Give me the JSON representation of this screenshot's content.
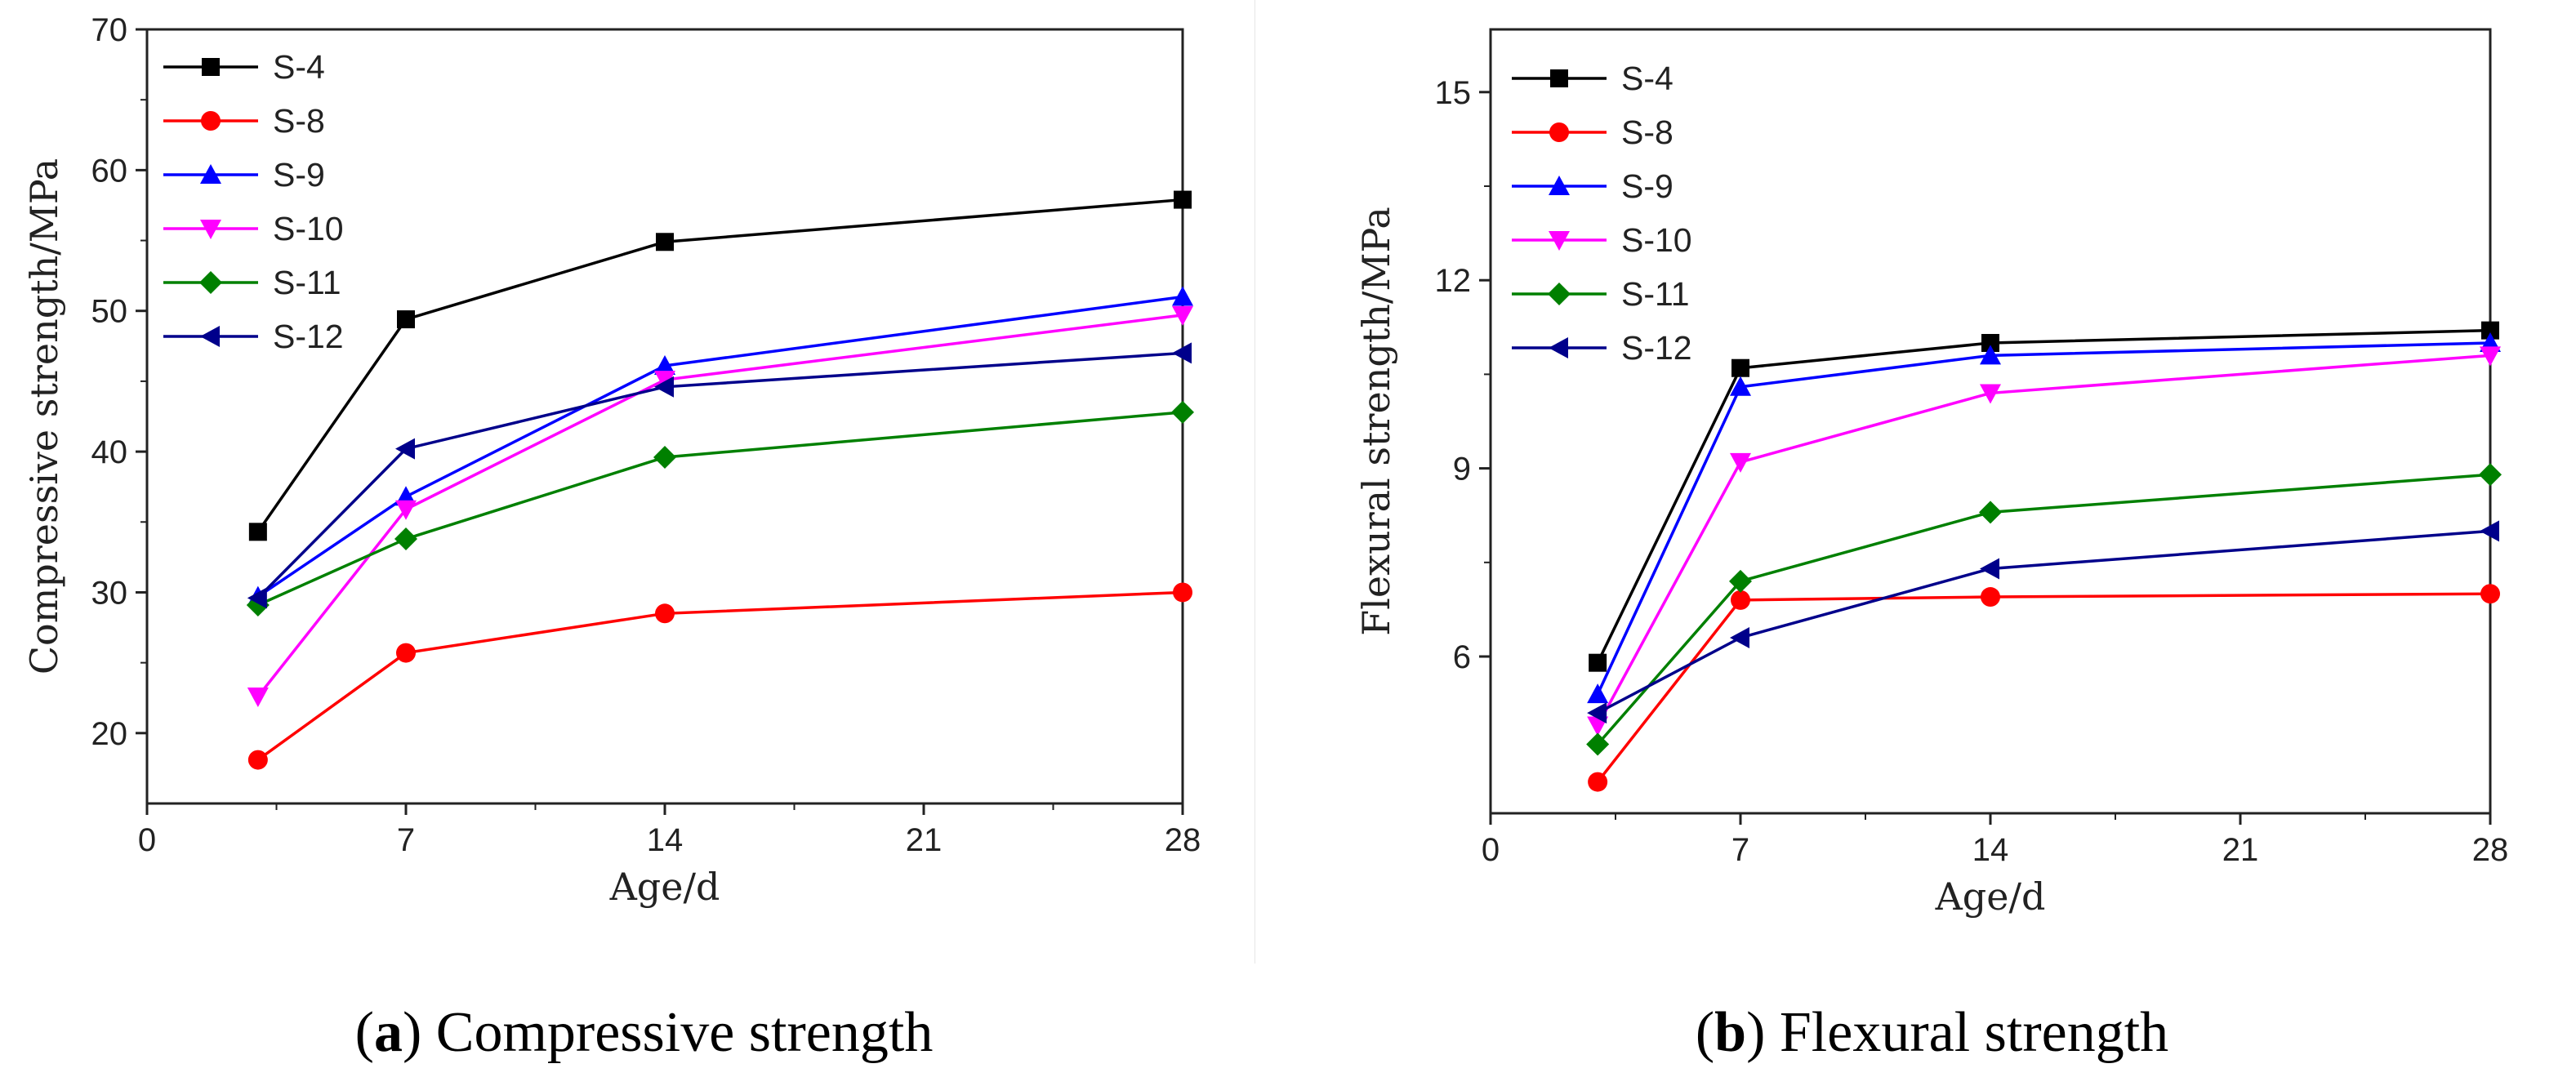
{
  "chart_data": [
    {
      "type": "line",
      "id": "a",
      "title": "Compressive strength",
      "caption_letter": "a",
      "xlabel": "Age/d",
      "ylabel": "Compressive strength/MPa",
      "xlim": [
        0,
        28
      ],
      "ylim": [
        15,
        70
      ],
      "xticks": [
        0,
        7,
        14,
        21,
        28
      ],
      "yticks": [
        20,
        30,
        40,
        50,
        60,
        70
      ],
      "legend_position": "top-left",
      "x": [
        3,
        7,
        14,
        28
      ],
      "series": [
        {
          "name": "S-4",
          "color": "#000000",
          "marker": "square",
          "values": [
            34.3,
            49.4,
            54.9,
            57.9
          ]
        },
        {
          "name": "S-8",
          "color": "#ff0000",
          "marker": "circle",
          "values": [
            18.1,
            25.7,
            28.5,
            30.0
          ]
        },
        {
          "name": "S-9",
          "color": "#0000ff",
          "marker": "triangle-up",
          "values": [
            29.7,
            36.8,
            46.1,
            51.0
          ]
        },
        {
          "name": "S-10",
          "color": "#ff00ff",
          "marker": "triangle-down",
          "values": [
            22.6,
            35.9,
            45.1,
            49.7
          ]
        },
        {
          "name": "S-11",
          "color": "#008000",
          "marker": "diamond",
          "values": [
            29.1,
            33.8,
            39.6,
            42.8
          ]
        },
        {
          "name": "S-12",
          "color": "#00008b",
          "marker": "triangle-left",
          "values": [
            29.6,
            40.2,
            44.6,
            47.0
          ]
        }
      ]
    },
    {
      "type": "line",
      "id": "b",
      "title": "Flexural strength",
      "caption_letter": "b",
      "xlabel": "Age/d",
      "ylabel": "Flexural strength/MPa",
      "xlim": [
        0,
        28
      ],
      "ylim": [
        3.5,
        16
      ],
      "xticks": [
        0,
        7,
        14,
        21,
        28
      ],
      "yticks": [
        6,
        9,
        12,
        15
      ],
      "legend_position": "top-left",
      "x": [
        3,
        7,
        14,
        28
      ],
      "series": [
        {
          "name": "S-4",
          "color": "#000000",
          "marker": "square",
          "values": [
            5.9,
            10.6,
            11.0,
            11.2
          ]
        },
        {
          "name": "S-8",
          "color": "#ff0000",
          "marker": "circle",
          "values": [
            4.0,
            6.9,
            6.95,
            7.0
          ]
        },
        {
          "name": "S-9",
          "color": "#0000ff",
          "marker": "triangle-up",
          "values": [
            5.4,
            10.3,
            10.8,
            11.0
          ]
        },
        {
          "name": "S-10",
          "color": "#ff00ff",
          "marker": "triangle-down",
          "values": [
            4.9,
            9.1,
            10.2,
            10.8
          ]
        },
        {
          "name": "S-11",
          "color": "#008000",
          "marker": "diamond",
          "values": [
            4.6,
            7.2,
            8.3,
            8.9
          ]
        },
        {
          "name": "S-12",
          "color": "#00008b",
          "marker": "triangle-left",
          "values": [
            5.1,
            6.3,
            7.4,
            8.0
          ]
        }
      ]
    }
  ]
}
